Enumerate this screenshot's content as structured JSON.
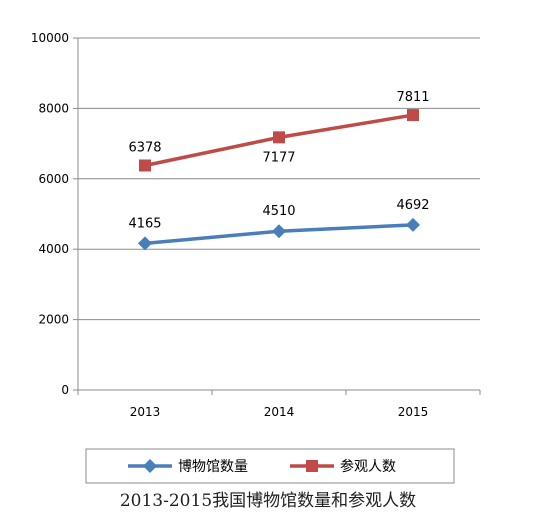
{
  "chart_data": {
    "type": "line",
    "title": "",
    "xlabel": "",
    "ylabel": "",
    "categories": [
      "2013",
      "2014",
      "2015"
    ],
    "ylim": [
      0,
      10000
    ],
    "yticks": [
      0,
      2000,
      4000,
      6000,
      8000,
      10000
    ],
    "grid": true,
    "legend_position": "bottom",
    "series": [
      {
        "name": "博物馆数量",
        "values": [
          4165,
          4510,
          4692
        ],
        "color": "#4a7ebb",
        "marker": "diamond"
      },
      {
        "name": "参观人数",
        "values": [
          6378,
          7177,
          7811
        ],
        "color": "#be4b48",
        "marker": "square"
      }
    ]
  },
  "caption": "2013-2015我国博物馆数量和参观人数"
}
